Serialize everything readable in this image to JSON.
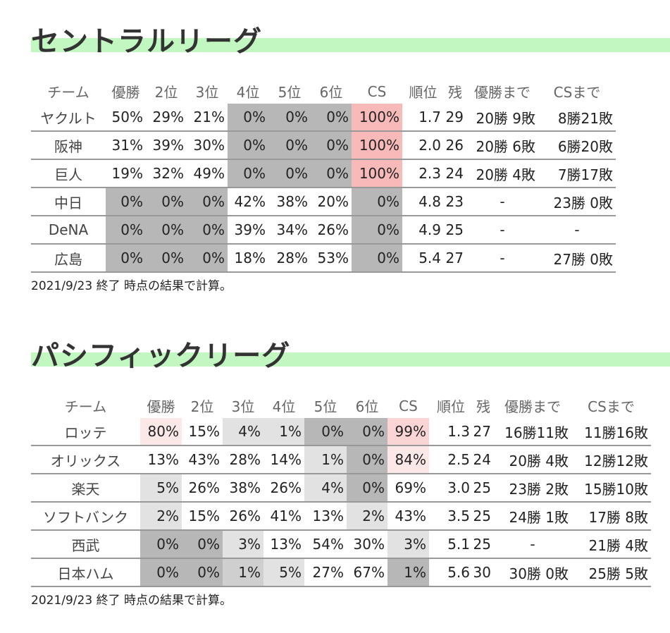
{
  "central": {
    "title": "セントラルリーグ",
    "headers": [
      "チーム",
      "優勝",
      "2位",
      "3位",
      "4位",
      "5位",
      "6位",
      "CS",
      "順位",
      "残",
      "優勝まで",
      "CSまで"
    ],
    "rows": [
      [
        "ヤクルト",
        "50%",
        "29%",
        "21%",
        "0%",
        "0%",
        "0%",
        "100%",
        "1.7",
        "29",
        "20勝 9敗",
        "8勝21敗"
      ],
      [
        "阪神",
        "31%",
        "39%",
        "30%",
        "0%",
        "0%",
        "0%",
        "100%",
        "2.0",
        "26",
        "20勝 6敗",
        "6勝20敗"
      ],
      [
        "巨人",
        "19%",
        "32%",
        "49%",
        "0%",
        "0%",
        "0%",
        "100%",
        "2.3",
        "24",
        "20勝 4敗",
        "7勝17敗"
      ],
      [
        "中日",
        "0%",
        "0%",
        "0%",
        "42%",
        "38%",
        "20%",
        "0%",
        "4.8",
        "23",
        "-",
        "23勝 0敗"
      ],
      [
        "DeNA",
        "0%",
        "0%",
        "0%",
        "39%",
        "34%",
        "26%",
        "0%",
        "4.9",
        "25",
        "-",
        "-"
      ],
      [
        "広島",
        "0%",
        "0%",
        "0%",
        "18%",
        "28%",
        "53%",
        "0%",
        "5.4",
        "27",
        "-",
        "27勝 0敗"
      ]
    ],
    "footnote": "2021/9/23 終了 時点の結果で計算。"
  },
  "pacific": {
    "title": "パシフィックリーグ",
    "headers": [
      "チーム",
      "優勝",
      "2位",
      "3位",
      "4位",
      "5位",
      "6位",
      "CS",
      "順位",
      "残",
      "優勝まで",
      "CSまで"
    ],
    "rows": [
      [
        "ロッテ",
        "80%",
        "15%",
        "4%",
        "1%",
        "0%",
        "0%",
        "99%",
        "1.3",
        "27",
        "16勝11敗",
        "11勝16敗"
      ],
      [
        "オリックス",
        "13%",
        "43%",
        "28%",
        "14%",
        "1%",
        "0%",
        "84%",
        "2.5",
        "24",
        "20勝 4敗",
        "12勝12敗"
      ],
      [
        "楽天",
        "5%",
        "26%",
        "38%",
        "26%",
        "4%",
        "0%",
        "69%",
        "3.0",
        "25",
        "23勝 2敗",
        "15勝10敗"
      ],
      [
        "ソフトバンク",
        "2%",
        "15%",
        "26%",
        "41%",
        "13%",
        "2%",
        "43%",
        "3.5",
        "25",
        "24勝 1敗",
        "17勝 8敗"
      ],
      [
        "西武",
        "0%",
        "0%",
        "3%",
        "13%",
        "54%",
        "30%",
        "3%",
        "5.1",
        "25",
        "-",
        "21勝 4敗"
      ],
      [
        "日本ハム",
        "0%",
        "0%",
        "1%",
        "5%",
        "27%",
        "67%",
        "1%",
        "5.6",
        "30",
        "30勝 0敗",
        "25勝 5敗"
      ]
    ],
    "footnote": "2021/9/23 終了 時点の結果で計算。"
  },
  "colors": {
    "title_bar": "#c2f7c2",
    "gray_dark": "#b7b7b7",
    "gray_mid": "#cfcfcf",
    "gray_light": "#e2e2e2",
    "pink_strong": "#f8b9b9",
    "pink_mid": "#fbd5d5",
    "pink_light": "#fde8e8"
  }
}
